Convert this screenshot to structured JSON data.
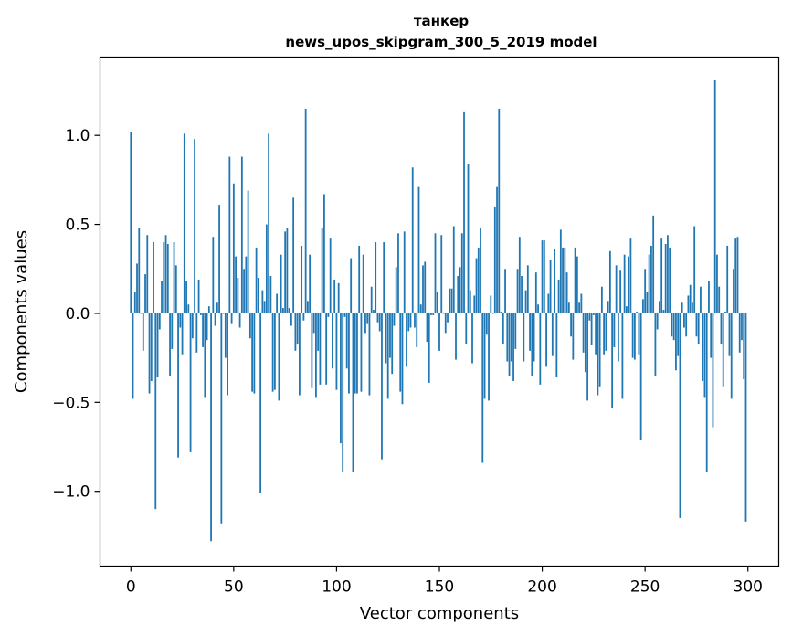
{
  "chart_data": {
    "type": "bar",
    "title": "танкер",
    "subtitle": "news_upos_skipgram_300_5_2019 model",
    "xlabel": "Vector components",
    "ylabel": "Components values",
    "xlim": [
      -15,
      315
    ],
    "ylim": [
      -1.42,
      1.44
    ],
    "xticks": [
      0,
      50,
      100,
      150,
      200,
      250,
      300
    ],
    "xtick_labels": [
      "0",
      "50",
      "100",
      "150",
      "200",
      "250",
      "300"
    ],
    "yticks": [
      -1.0,
      -0.5,
      0.0,
      0.5,
      1.0
    ],
    "ytick_labels": [
      "−1.0",
      "−0.5",
      "0.0",
      "0.5",
      "1.0"
    ],
    "bar_color": "#1f77b4",
    "highlights": [
      {
        "index": 0,
        "value": 1.02
      },
      {
        "index": 12,
        "value": -1.1
      },
      {
        "index": 26,
        "value": 1.01
      },
      {
        "index": 31,
        "value": 0.98
      },
      {
        "index": 39,
        "value": -1.28
      },
      {
        "index": 44,
        "value": -1.18
      },
      {
        "index": 63,
        "value": -1.01
      },
      {
        "index": 67,
        "value": 1.01
      },
      {
        "index": 85,
        "value": 1.15
      },
      {
        "index": 162,
        "value": 1.13
      },
      {
        "index": 179,
        "value": 1.15
      },
      {
        "index": 267,
        "value": -1.15
      },
      {
        "index": 284,
        "value": 1.31
      },
      {
        "index": 299,
        "value": -1.17
      }
    ]
  }
}
